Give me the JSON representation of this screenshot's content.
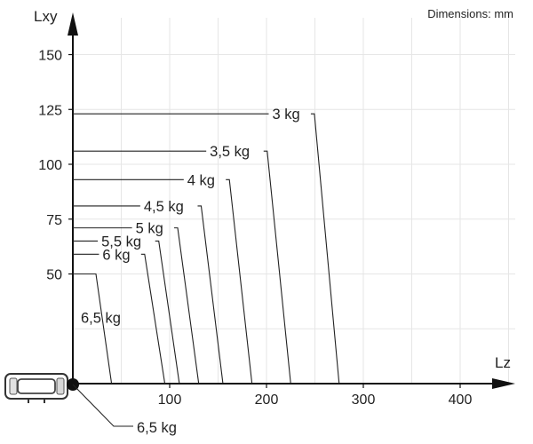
{
  "units_note": "Dimensions: mm",
  "axes": {
    "x_title": "Lz",
    "y_title": "Lxy",
    "x_ticks": [
      100,
      200,
      300,
      400
    ],
    "y_ticks": [
      50,
      75,
      100,
      125,
      150
    ],
    "x_range": [
      0,
      460
    ],
    "y_range": [
      0,
      170
    ]
  },
  "payload_curves": [
    {
      "label": "3 kg",
      "lxy": 123,
      "lz": 275
    },
    {
      "label": "3,5 kg",
      "lxy": 106,
      "lz": 225
    },
    {
      "label": "4 kg",
      "lxy": 93,
      "lz": 185
    },
    {
      "label": "4,5 kg",
      "lxy": 81,
      "lz": 155
    },
    {
      "label": "5 kg",
      "lxy": 71,
      "lz": 130
    },
    {
      "label": "5,5 kg",
      "lxy": 65,
      "lz": 110
    },
    {
      "label": "6 kg",
      "lxy": 59,
      "lz": 95
    },
    {
      "label": "6,5 kg",
      "lxy": 50,
      "lz": 40
    }
  ],
  "origin_label": "6,5 kg"
}
